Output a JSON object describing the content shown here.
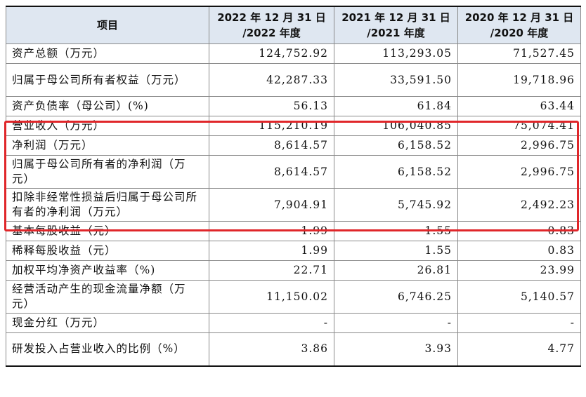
{
  "table": {
    "headers": [
      "项目",
      "2022 年 12 月 31 日\n/2022 年度",
      "2021 年 12 月 31 日\n/2021 年度",
      "2020 年 12 月 31 日\n/2020 年度"
    ],
    "rows": [
      {
        "label": "资产总额（万元）",
        "values": [
          "124,752.92",
          "113,293.05",
          "71,527.45"
        ]
      },
      {
        "label": "归属于母公司所有者权益（万元）",
        "values": [
          "42,287.33",
          "33,591.50",
          "19,718.96"
        ]
      },
      {
        "label": "资产负债率（母公司）(%)",
        "values": [
          "56.13",
          "61.84",
          "63.44"
        ]
      },
      {
        "label": "营业收入（万元）",
        "values": [
          "115,210.19",
          "106,040.85",
          "75,074.41"
        ]
      },
      {
        "label": "净利润（万元）",
        "values": [
          "8,614.57",
          "6,158.52",
          "2,996.75"
        ]
      },
      {
        "label": "归属于母公司所有者的净利润（万元）",
        "values": [
          "8,614.57",
          "6,158.52",
          "2,996.75"
        ]
      },
      {
        "label": "扣除非经常性损益后归属于母公司所有者的净利润（万元）",
        "values": [
          "7,904.91",
          "5,745.92",
          "2,492.23"
        ]
      },
      {
        "label": "基本每股收益（元）",
        "values": [
          "1.99",
          "1.55",
          "0.83"
        ]
      },
      {
        "label": "稀释每股收益（元）",
        "values": [
          "1.99",
          "1.55",
          "0.83"
        ]
      },
      {
        "label": "加权平均净资产收益率（%)",
        "values": [
          "22.71",
          "26.81",
          "23.99"
        ]
      },
      {
        "label": "经营活动产生的现金流量净额（万元）",
        "values": [
          "11,150.02",
          "6,746.25",
          "5,140.57"
        ]
      },
      {
        "label": "现金分红（万元）",
        "values": [
          "-",
          "-",
          "-"
        ]
      },
      {
        "label": "研发投入占营业收入的比例（%）",
        "values": [
          "3.86",
          "3.93",
          "4.77"
        ]
      }
    ]
  },
  "highlight": {
    "color": "#e0262a",
    "rows": [
      3,
      4,
      5,
      6
    ]
  }
}
